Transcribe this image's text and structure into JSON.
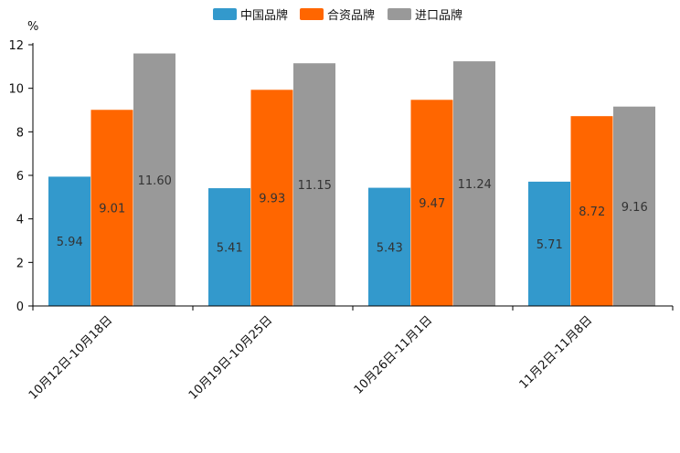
{
  "chart_data": {
    "type": "bar",
    "ylabel": "%",
    "ylim": [
      0,
      12
    ],
    "yticks": [
      "0",
      "2",
      "4",
      "6",
      "8",
      "10",
      "12"
    ],
    "categories": [
      "10月12日-10月18日",
      "10月19日-10月25日",
      "10月26日-11月1日",
      "11月2日-11月8日"
    ],
    "series": [
      {
        "name": "中国品牌",
        "color": "#3399cc",
        "values": [
          5.94,
          5.41,
          5.43,
          5.71
        ],
        "labels": [
          "5.94",
          "5.41",
          "5.43",
          "5.71"
        ]
      },
      {
        "name": "合资品牌",
        "color": "#ff6600",
        "values": [
          9.01,
          9.93,
          9.47,
          8.72
        ],
        "labels": [
          "9.01",
          "9.93",
          "9.47",
          "8.72"
        ]
      },
      {
        "name": "进口品牌",
        "color": "#999999",
        "values": [
          11.6,
          11.15,
          11.24,
          9.16
        ],
        "labels": [
          "11.60",
          "11.15",
          "11.24",
          "9.16"
        ]
      }
    ],
    "legend": "top-center"
  }
}
